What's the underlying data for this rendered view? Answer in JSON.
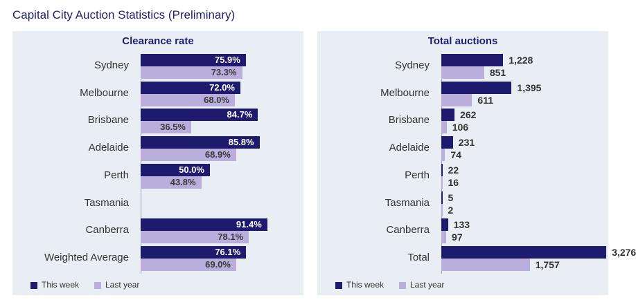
{
  "page_title": "Capital City Auction Statistics (Preliminary)",
  "colors": {
    "this_week": "#1e1b6e",
    "last_year": "#b9aedc",
    "panel_bg": "#e9eef4",
    "title": "#1f1f6b"
  },
  "legend": {
    "this_week": "This week",
    "last_year": "Last year"
  },
  "chart_data": [
    {
      "type": "bar",
      "orientation": "horizontal",
      "title": "Clearance rate",
      "categories": [
        "Sydney",
        "Melbourne",
        "Brisbane",
        "Adelaide",
        "Perth",
        "Tasmania",
        "Canberra",
        "Weighted Average"
      ],
      "series": [
        {
          "name": "This week",
          "values": [
            75.9,
            72.0,
            84.7,
            85.8,
            50.0,
            null,
            91.4,
            76.1
          ],
          "labels": [
            "75.9%",
            "72.0%",
            "84.7%",
            "85.8%",
            "50.0%",
            "",
            "91.4%",
            "76.1%"
          ]
        },
        {
          "name": "Last year",
          "values": [
            73.3,
            68.0,
            36.5,
            68.9,
            43.8,
            null,
            78.1,
            69.0
          ],
          "labels": [
            "73.3%",
            "68.0%",
            "36.5%",
            "68.9%",
            "43.8%",
            "",
            "78.1%",
            "69.0%"
          ]
        }
      ],
      "xlim": [
        0,
        100
      ]
    },
    {
      "type": "bar",
      "orientation": "horizontal",
      "title": "Total auctions",
      "categories": [
        "Sydney",
        "Melbourne",
        "Brisbane",
        "Adelaide",
        "Perth",
        "Tasmania",
        "Canberra",
        "Total"
      ],
      "series": [
        {
          "name": "This week",
          "values": [
            1228,
            1395,
            262,
            231,
            22,
            5,
            133,
            3276
          ],
          "labels": [
            "1,228",
            "1,395",
            "262",
            "231",
            "22",
            "5",
            "133",
            "3,276"
          ]
        },
        {
          "name": "Last year",
          "values": [
            851,
            611,
            106,
            74,
            16,
            2,
            97,
            1757
          ],
          "labels": [
            "851",
            "611",
            "106",
            "74",
            "16",
            "2",
            "97",
            "1,757"
          ]
        }
      ],
      "xlim": [
        0,
        3600
      ]
    }
  ]
}
